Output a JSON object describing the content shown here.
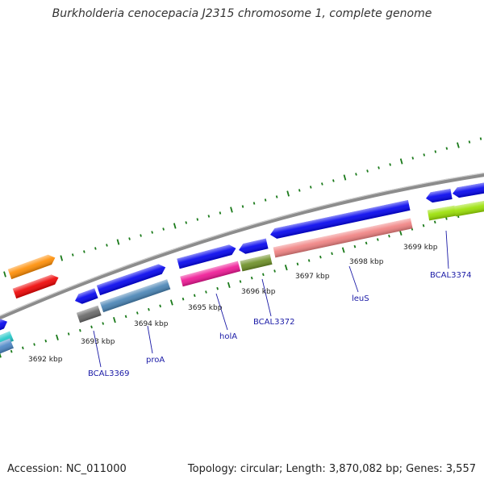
{
  "title": "Burkholderia cenocepacia J2315 chromosome 1, complete genome",
  "footer": {
    "accession": "Accession: NC_011000",
    "summary": "Topology: circular; Length: 3,870,082 bp; Genes: 3,557"
  },
  "colors": {
    "backbone": "#8c8c8c",
    "tick": "#1a7a1a",
    "ruler_label": "#222222",
    "gene_label": "#1a1aa6"
  },
  "ruler": {
    "labels": [
      "3692 kbp",
      "3693 kbp",
      "3694 kbp",
      "3695 kbp",
      "3696 kbp",
      "3697 kbp",
      "3698 kbp",
      "3699 kbp"
    ]
  },
  "gene_labels": [
    "BCAL3369",
    "proA",
    "holA",
    "BCAL3372",
    "leuS",
    "BCAL3374"
  ],
  "features": [
    {
      "color": "#ff8c00"
    },
    {
      "color": "#ee0000"
    },
    {
      "color": "#0000ee"
    },
    {
      "color": "#20c8c8"
    },
    {
      "color": "#4a86c6"
    },
    {
      "color": "#0000ee"
    },
    {
      "color": "#666666"
    },
    {
      "color": "#0000ee"
    },
    {
      "color": "#4682b4"
    },
    {
      "color": "#0000ee"
    },
    {
      "color": "#ee1493"
    },
    {
      "color": "#0000ee"
    },
    {
      "color": "#6b8e23"
    },
    {
      "color": "#0000ee"
    },
    {
      "color": "#f08080"
    },
    {
      "color": "#0000ee"
    },
    {
      "color": "#0000ee"
    },
    {
      "color": "#99e000"
    },
    {
      "color": "#99e000"
    }
  ]
}
